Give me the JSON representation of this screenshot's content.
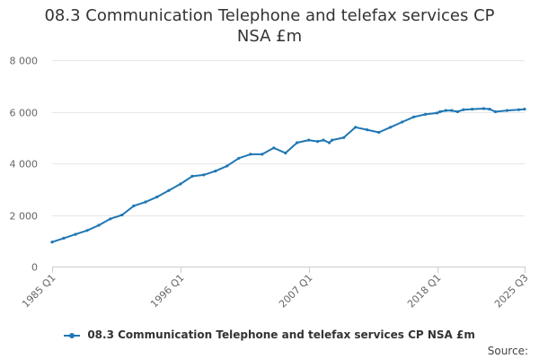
{
  "chart_data": {
    "type": "line",
    "title_line1": "08.3 Communication Telephone and telefax services CP",
    "title_line2": "NSA £m",
    "y_ticks": [
      0,
      2000,
      4000,
      6000,
      8000
    ],
    "y_tick_labels": [
      "0",
      "2 000",
      "4 000",
      "6 000",
      "8 000"
    ],
    "ylim": [
      0,
      8000
    ],
    "x_range": [
      "1985 Q1",
      "2025 Q3"
    ],
    "x_tick_labels": [
      "1985 Q1",
      "1996 Q1",
      "2007 Q1",
      "2018 Q1",
      "2025 Q3"
    ],
    "x_ticks_at": [
      "1985 Q1",
      "1996 Q1",
      "2007 Q1",
      "2018 Q1",
      "2025 Q3"
    ],
    "grid": true,
    "legend_position": "bottom",
    "source_label": "Source:",
    "series": [
      {
        "name": "08.3 Communication Telephone and telefax services CP NSA £m",
        "color": "#1f77b4",
        "x": [
          "1985 Q1",
          "1986 Q1",
          "1987 Q1",
          "1988 Q1",
          "1989 Q1",
          "1990 Q1",
          "1991 Q1",
          "1992 Q1",
          "1993 Q1",
          "1994 Q1",
          "1995 Q1",
          "1996 Q1",
          "1997 Q1",
          "1998 Q1",
          "1999 Q1",
          "2000 Q1",
          "2001 Q1",
          "2002 Q1",
          "2003 Q1",
          "2004 Q1",
          "2005 Q1",
          "2006 Q1",
          "2007 Q1",
          "2007 Q4",
          "2008 Q2",
          "2008 Q4",
          "2009 Q1",
          "2010 Q1",
          "2011 Q1",
          "2012 Q1",
          "2013 Q1",
          "2014 Q1",
          "2015 Q1",
          "2016 Q1",
          "2017 Q1",
          "2018 Q1",
          "2018 Q2",
          "2018 Q4",
          "2019 Q2",
          "2019 Q4",
          "2020 Q2",
          "2021 Q1",
          "2022 Q1",
          "2022 Q3",
          "2023 Q1",
          "2024 Q1",
          "2025 Q1",
          "2025 Q3"
        ],
        "values": [
          950,
          1100,
          1250,
          1400,
          1600,
          1850,
          2000,
          2350,
          2500,
          2700,
          2950,
          3200,
          3500,
          3550,
          3700,
          3900,
          4200,
          4350,
          4350,
          4600,
          4400,
          4800,
          4900,
          4850,
          4900,
          4800,
          4900,
          5000,
          5400,
          5300,
          5200,
          5400,
          5600,
          5800,
          5900,
          5950,
          6000,
          6050,
          6050,
          6000,
          6080,
          6100,
          6120,
          6100,
          6000,
          6050,
          6080,
          6100
        ]
      }
    ]
  }
}
